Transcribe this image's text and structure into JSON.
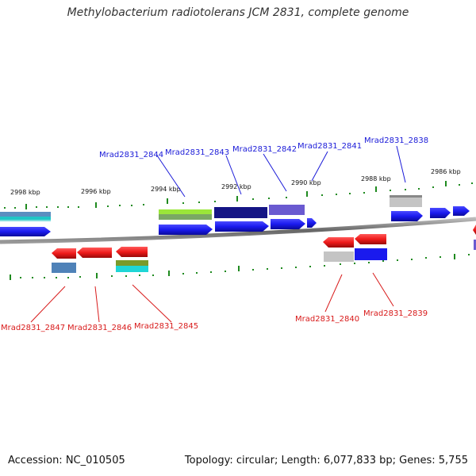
{
  "title": "Methylobacterium radiotolerans JCM 2831, complete genome",
  "accession": "Accession: NC_010505",
  "stats": "Topology: circular; Length: 6,077,833 bp; Genes: 5,755",
  "kbp_labels": [
    "2998 kbp",
    "2996 kbp",
    "2994 kbp",
    "2992 kbp",
    "2990 kbp",
    "2988 kbp",
    "2986 kbp"
  ],
  "top_gene_labels": [
    "Mrad2831_2844",
    "Mrad2831_2843",
    "Mrad2831_2842",
    "Mrad2831_2841",
    "Mrad2831_2838"
  ],
  "bottom_gene_labels": [
    "Mrad2831_2847",
    "Mrad2831_2846",
    "Mrad2831_2845",
    "Mrad2831_2840",
    "Mrad2831_2839"
  ],
  "colors": {
    "forward_gene": "#1a1aee",
    "reverse_gene": "#ee1a1a",
    "top_label": "#1a1ad8",
    "bottom_label": "#d81a1a",
    "tick": "#1f8a1f",
    "backbone": "#777777"
  }
}
